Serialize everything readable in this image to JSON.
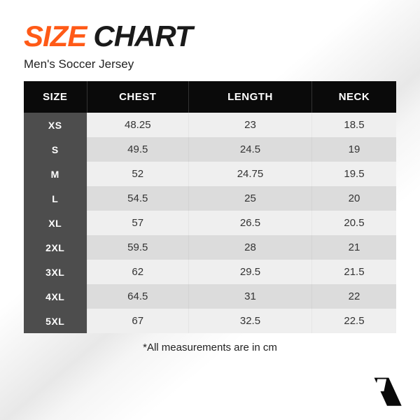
{
  "title": {
    "word1": "SIZE",
    "word2": "CHART"
  },
  "subtitle": "Men's Soccer Jersey",
  "columns": [
    "SIZE",
    "CHEST",
    "LENGTH",
    "NECK"
  ],
  "rows": [
    {
      "size": "XS",
      "chest": "48.25",
      "length": "23",
      "neck": "18.5"
    },
    {
      "size": "S",
      "chest": "49.5",
      "length": "24.5",
      "neck": "19"
    },
    {
      "size": "M",
      "chest": "52",
      "length": "24.75",
      "neck": "19.5"
    },
    {
      "size": "L",
      "chest": "54.5",
      "length": "25",
      "neck": "20"
    },
    {
      "size": "XL",
      "chest": "57",
      "length": "26.5",
      "neck": "20.5"
    },
    {
      "size": "2XL",
      "chest": "59.5",
      "length": "28",
      "neck": "21"
    },
    {
      "size": "3XL",
      "chest": "62",
      "length": "29.5",
      "neck": "21.5"
    },
    {
      "size": "4XL",
      "chest": "64.5",
      "length": "31",
      "neck": "22"
    },
    {
      "size": "5XL",
      "chest": "67",
      "length": "32.5",
      "neck": "22.5"
    }
  ],
  "footnote": "*All measurements are in cm",
  "colors": {
    "accent": "#ff5a17",
    "header_bg": "#0a0a0a",
    "size_col_bg": "#4d4d4d",
    "row_even": "#efefef",
    "row_odd": "#dcdcdc",
    "text": "#222222"
  },
  "fonts": {
    "title_size_pt": 42,
    "title_weight": 900,
    "subtitle_size_pt": 17,
    "body_size_pt": 15
  }
}
